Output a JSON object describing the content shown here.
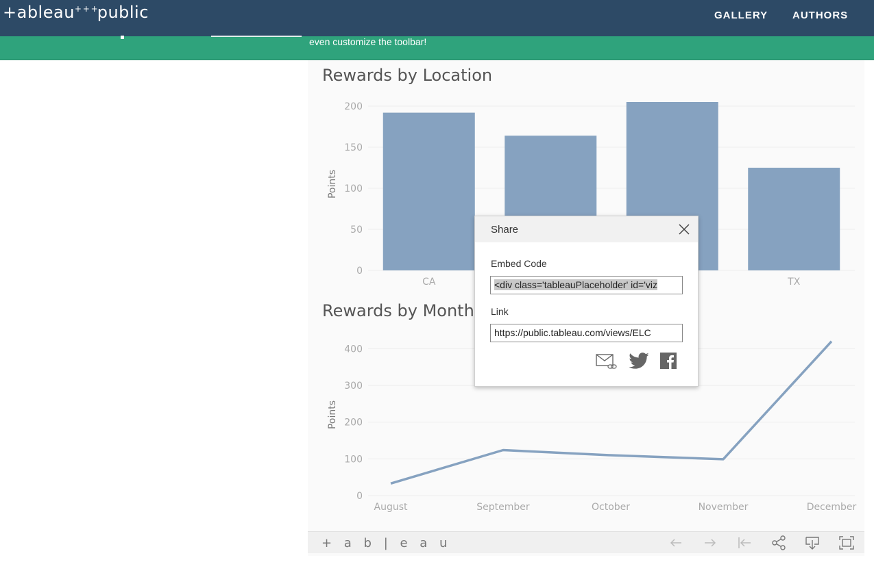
{
  "header": {
    "logo": "+ableau",
    "logo_mark": "+ + +",
    "logo_suffix": "public",
    "nav": [
      "GALLERY",
      "AUTHORS"
    ]
  },
  "banner": {
    "text": "even customize the toolbar!"
  },
  "colors": {
    "topbar": "#2d4a66",
    "banner": "#2fa37c",
    "series": "#86a2c0"
  },
  "charts": {
    "rewards_by_location": {
      "title": "Rewards by Location"
    },
    "rewards_by_month": {
      "title": "Rewards by Month"
    }
  },
  "chart_data": [
    {
      "type": "bar",
      "title": "Rewards by Location",
      "xlabel": "",
      "ylabel": "Points",
      "categories": [
        "CA",
        "",
        "",
        "TX"
      ],
      "values": [
        192,
        164,
        205,
        125
      ],
      "ylim": [
        0,
        210
      ],
      "yticks": [
        0,
        50,
        100,
        150,
        200
      ],
      "grid": true
    },
    {
      "type": "line",
      "title": "Rewards by Month",
      "xlabel": "",
      "ylabel": "Points",
      "x": [
        "August",
        "September",
        "October",
        "November",
        "December"
      ],
      "values": [
        33,
        124,
        110,
        99,
        420
      ],
      "ylim": [
        0,
        440
      ],
      "yticks": [
        0,
        100,
        200,
        300,
        400
      ],
      "grid": true
    }
  ],
  "share_dialog": {
    "title": "Share",
    "embed_label": "Embed Code",
    "embed_value": "<div class='tableauPlaceholder' id='viz",
    "link_label": "Link",
    "link_value": "https://public.tableau.com/views/ELC",
    "icons": [
      "email-link-icon",
      "twitter-icon",
      "facebook-icon"
    ]
  },
  "toolbar": {
    "logo": "+ a b | e a u",
    "buttons": [
      "undo-icon",
      "redo-icon",
      "revert-icon",
      "share-icon",
      "download-icon",
      "fullscreen-icon"
    ]
  }
}
